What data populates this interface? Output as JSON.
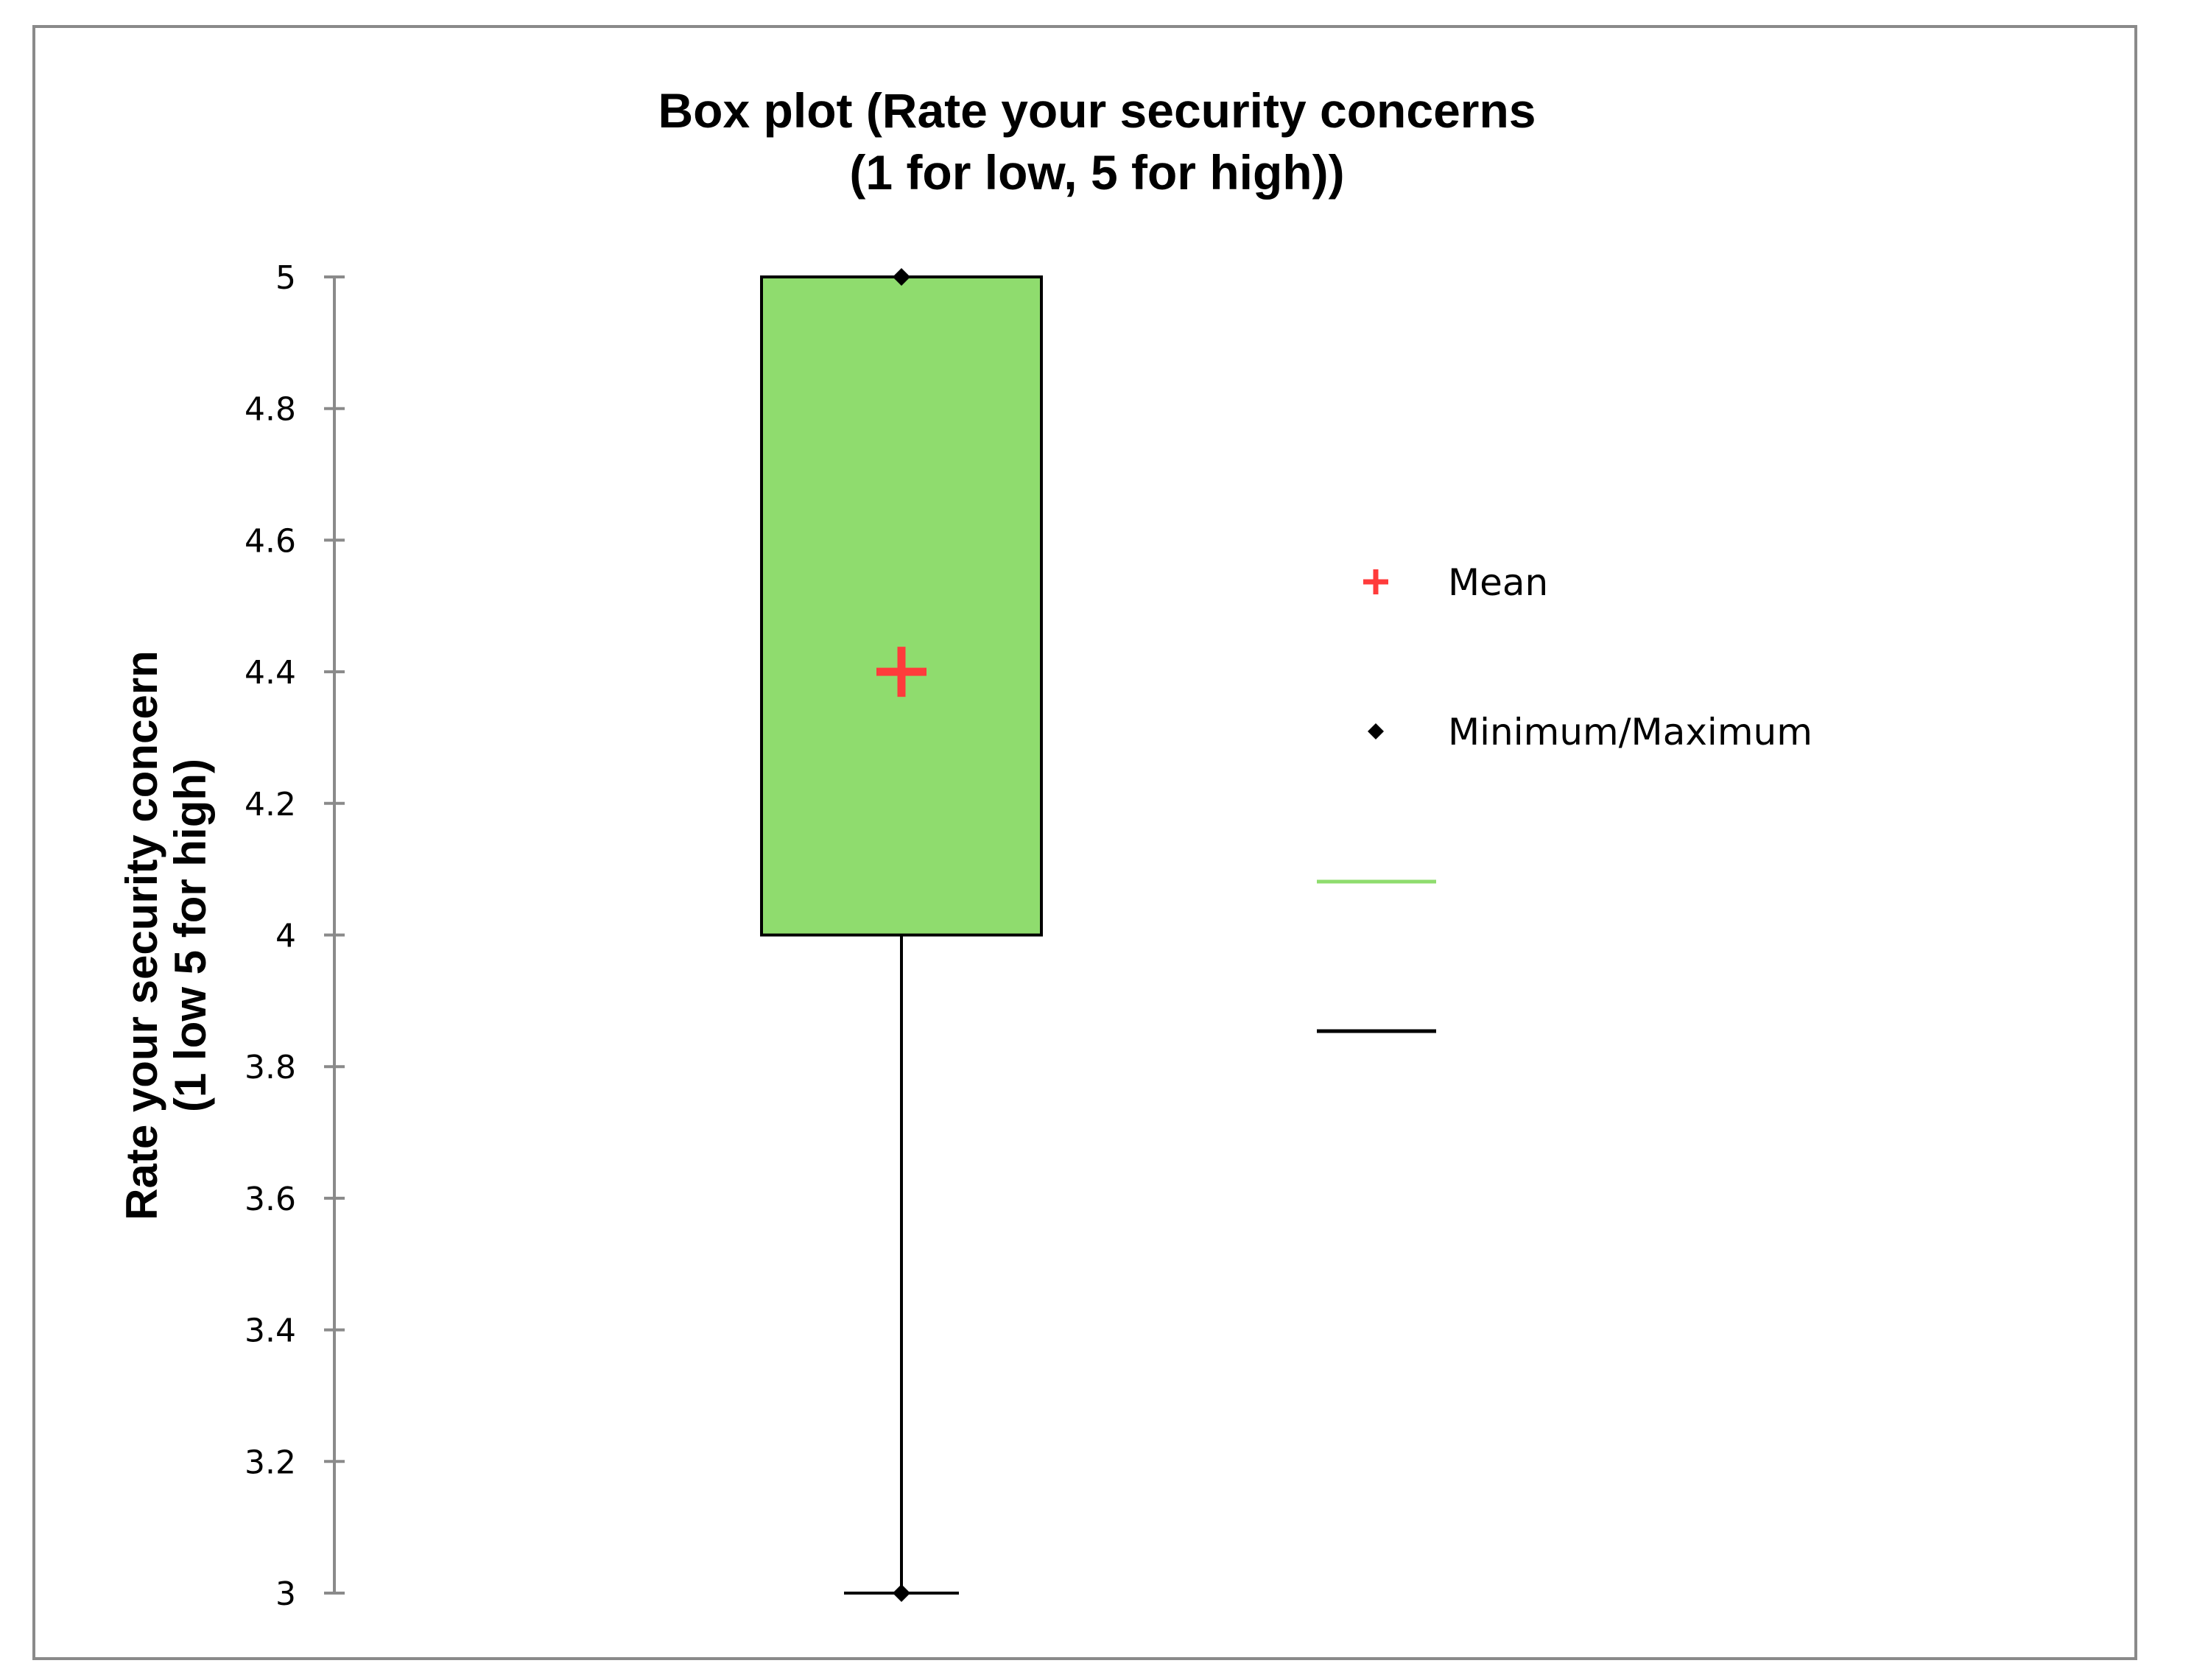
{
  "chart_data": {
    "type": "box",
    "title": "Box plot (Rate your security concerns\n(1 for low, 5 for high))",
    "ylabel": "Rate your security concern\n(1 low 5 for high)",
    "xlabel": "",
    "ylim": [
      3,
      5
    ],
    "yticks": [
      "3",
      "3.2",
      "3.4",
      "3.6",
      "3.8",
      "4",
      "4.2",
      "4.4",
      "4.6",
      "4.8",
      "5"
    ],
    "grid": false,
    "legend_position": "right",
    "box": {
      "min": 3,
      "q1": 4,
      "median": 5,
      "q3": 5,
      "max": 5,
      "mean": 4.4
    },
    "legend": [
      {
        "label": "Mean",
        "marker": "plus",
        "color": "#ff3b3b"
      },
      {
        "label": "Minimum/Maximum",
        "marker": "diamond",
        "color": "#000000"
      },
      {
        "label": "",
        "marker": "line",
        "color": "#8fdc6e"
      },
      {
        "label": "",
        "marker": "line",
        "color": "#000000"
      }
    ],
    "colors": {
      "box_fill": "#8fdc6e",
      "box_stroke": "#000000",
      "mean": "#ff3b3b",
      "axis": "#8a8a8a"
    }
  }
}
